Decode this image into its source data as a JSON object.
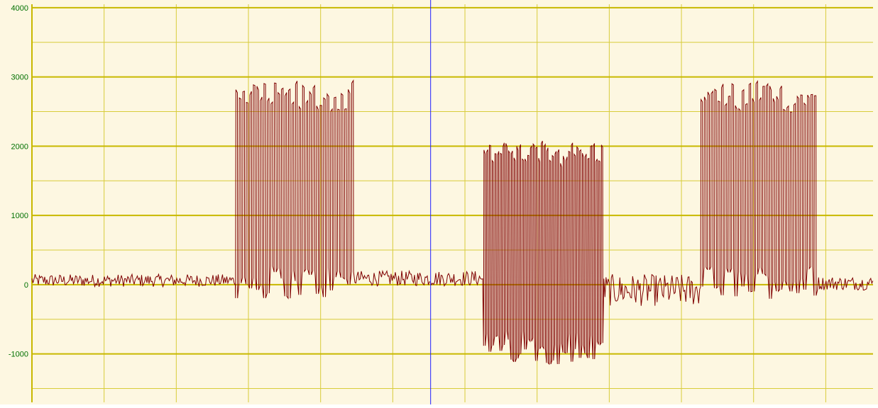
{
  "chart_data": {
    "type": "line",
    "title": "",
    "xlabel": "",
    "ylabel": "",
    "ylim": [
      -1700,
      4050
    ],
    "grid": true,
    "yticks": [
      {
        "value": 4000,
        "label": "4000"
      },
      {
        "value": 3000,
        "label": "3000"
      },
      {
        "value": 2000,
        "label": "2000"
      },
      {
        "value": 1000,
        "label": "1000"
      },
      {
        "value": 0,
        "label": "0"
      },
      {
        "value": -1000,
        "label": "-1000"
      }
    ],
    "cursor_fraction": 0.474,
    "series": [
      {
        "color": "#7f0000",
        "segments": [
          {
            "from": 0.0,
            "to": 0.242,
            "kind": "noise",
            "base": 60,
            "amp": 90
          },
          {
            "from": 0.242,
            "to": 0.384,
            "kind": "pulses",
            "high": 2700,
            "low": 40,
            "pulses": 34
          },
          {
            "from": 0.384,
            "to": 0.537,
            "kind": "noise",
            "base": 90,
            "amp": 110
          },
          {
            "from": 0.537,
            "to": 0.68,
            "kind": "pulses",
            "high": 1900,
            "low": -900,
            "pulses": 44
          },
          {
            "from": 0.68,
            "to": 0.795,
            "kind": "noise",
            "base": -80,
            "amp": 230
          },
          {
            "from": 0.795,
            "to": 0.934,
            "kind": "pulses",
            "high": 2700,
            "low": 40,
            "pulses": 34
          },
          {
            "from": 0.934,
            "to": 1.0,
            "kind": "noise",
            "base": 20,
            "amp": 100
          }
        ]
      }
    ]
  },
  "colors": {
    "background": "#fdf7e1",
    "grid": "#d8cc3a",
    "major_grid": "#c8b800",
    "tick_label": "#007000",
    "cursor": "#2020ff",
    "trace": "#7f0000"
  }
}
